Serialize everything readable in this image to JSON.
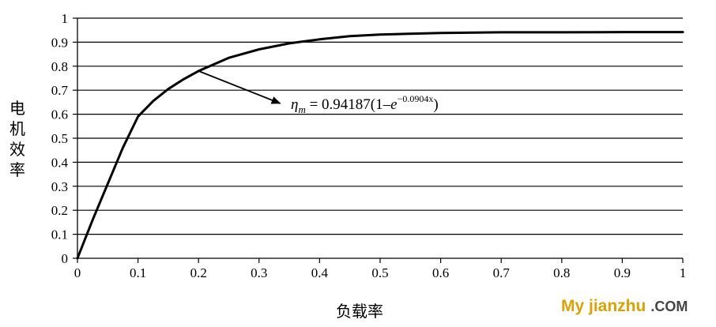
{
  "chart_data": {
    "type": "line",
    "xlabel": "负载率",
    "ylabel": "电机效率",
    "xlim": [
      0,
      1
    ],
    "ylim": [
      0,
      1
    ],
    "x_ticks": [
      "0",
      "0.1",
      "0.2",
      "0.3",
      "0.4",
      "0.5",
      "0.6",
      "0.7",
      "0.8",
      "0.9",
      "1"
    ],
    "y_ticks": [
      "0",
      "0.1",
      "0.2",
      "0.3",
      "0.4",
      "0.5",
      "0.6",
      "0.7",
      "0.8",
      "0.9",
      "1"
    ],
    "grid": "horizontal",
    "series": [
      {
        "x": [
          0,
          0.025,
          0.05,
          0.075,
          0.1,
          0.125,
          0.15,
          0.175,
          0.2,
          0.25,
          0.3,
          0.35,
          0.4,
          0.45,
          0.5,
          0.6,
          0.7,
          0.8,
          0.9,
          1.0
        ],
        "y": [
          0,
          0.16,
          0.31,
          0.46,
          0.59,
          0.655,
          0.705,
          0.745,
          0.78,
          0.835,
          0.87,
          0.895,
          0.912,
          0.925,
          0.932,
          0.938,
          0.941,
          0.941,
          0.942,
          0.942
        ]
      }
    ],
    "annotation": {
      "eta": "η",
      "sub": "m",
      "mid": " = 0.94187(1–",
      "e": "e",
      "exp": "−0.0904x",
      "close": ")",
      "arrow_from": [
        0.2,
        0.78
      ],
      "arrow_to": [
        0.335,
        0.645
      ]
    }
  },
  "watermark": {
    "main": "My jianzhu",
    "com": ".COM"
  }
}
